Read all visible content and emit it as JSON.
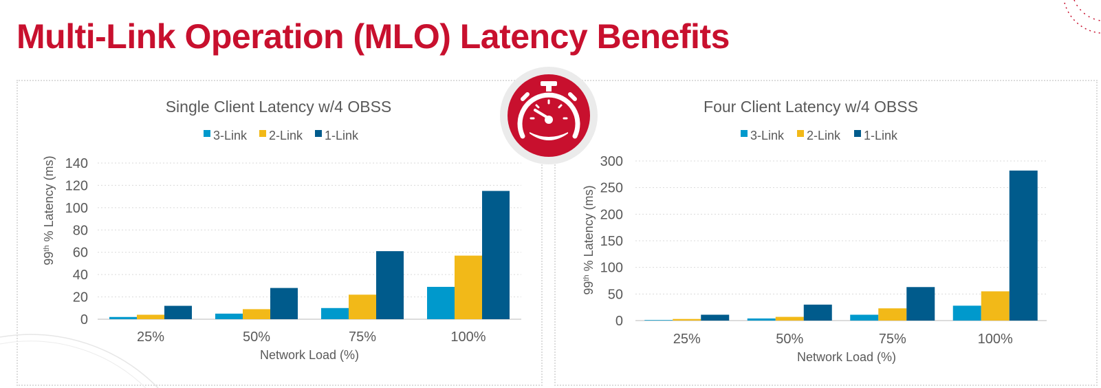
{
  "slide": {
    "title": "Multi-Link Operation (MLO) Latency Benefits"
  },
  "colors": {
    "title": "#c8102e",
    "badge": "#c8102e",
    "badge_ring": "#ebebeb",
    "series": [
      "#0099cc",
      "#f2b918",
      "#005b8c"
    ]
  },
  "icon": {
    "name": "stopwatch-icon"
  },
  "chart_data": [
    {
      "type": "bar",
      "title": "Single Client Latency w/4 OBSS",
      "xlabel": "Network Load (%)",
      "ylabel": "99th % Latency (ms)",
      "ylim": [
        0,
        140
      ],
      "yticks": [
        "0",
        "20",
        "40",
        "60",
        "80",
        "100",
        "120",
        "140"
      ],
      "grid": true,
      "legend_position": "top",
      "categories": [
        "25%",
        "50%",
        "75%",
        "100%"
      ],
      "series": [
        {
          "name": "3-Link",
          "values": [
            2,
            5,
            10,
            29
          ]
        },
        {
          "name": "2-Link",
          "values": [
            4,
            9,
            22,
            57
          ]
        },
        {
          "name": "1-Link",
          "values": [
            12,
            28,
            61,
            115
          ]
        }
      ]
    },
    {
      "type": "bar",
      "title": "Four Client Latency w/4 OBSS",
      "xlabel": "Network Load (%)",
      "ylabel": "99th % Latency (ms)",
      "ylim": [
        0,
        300
      ],
      "yticks": [
        "0",
        "50",
        "100",
        "150",
        "200",
        "250",
        "300"
      ],
      "grid": true,
      "legend_position": "top",
      "categories": [
        "25%",
        "50%",
        "75%",
        "100%"
      ],
      "series": [
        {
          "name": "3-Link",
          "values": [
            1,
            4,
            11,
            28
          ]
        },
        {
          "name": "2-Link",
          "values": [
            3,
            7,
            23,
            55
          ]
        },
        {
          "name": "1-Link",
          "values": [
            11,
            30,
            63,
            282
          ]
        }
      ]
    }
  ]
}
